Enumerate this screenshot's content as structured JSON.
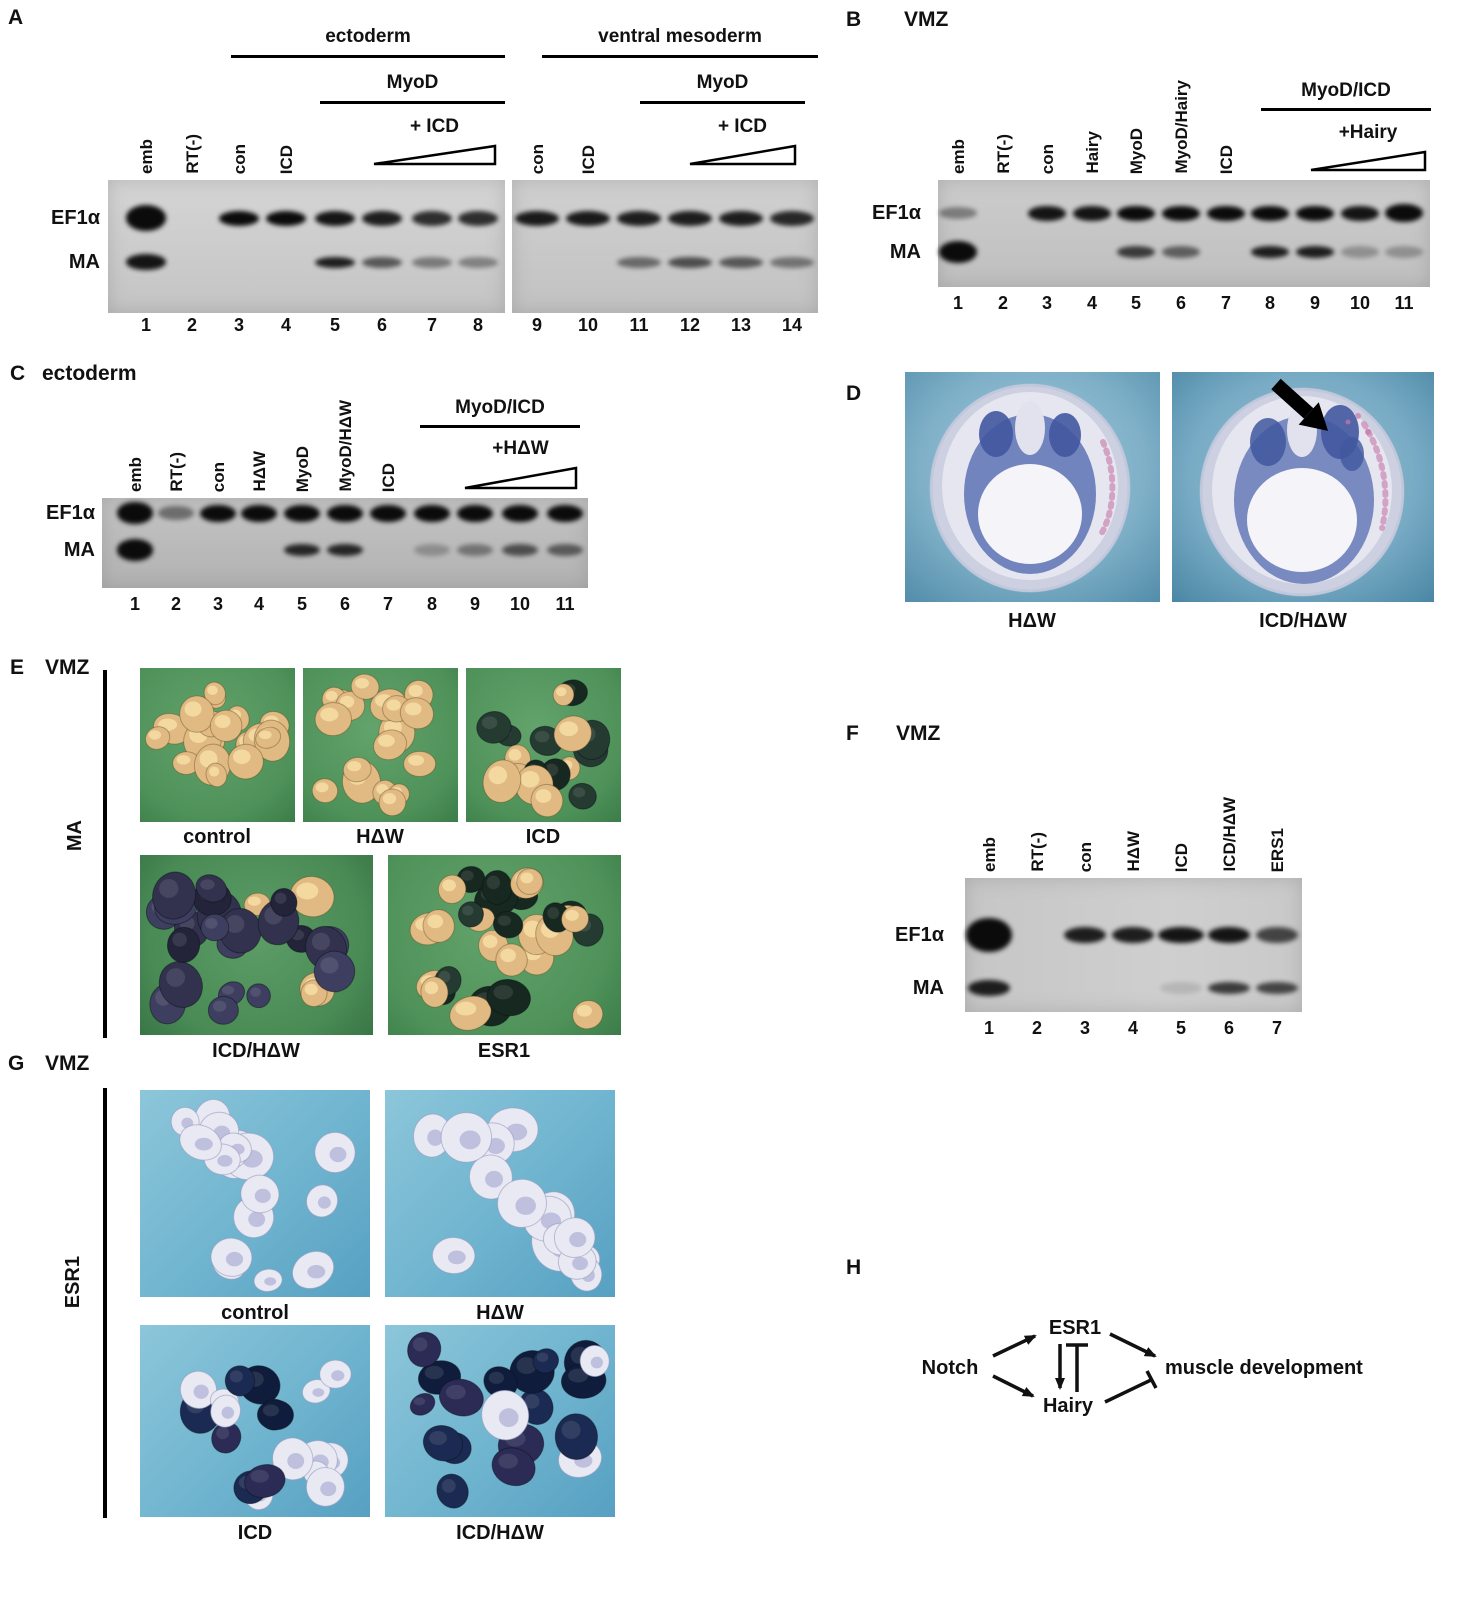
{
  "panels": {
    "A": {
      "letter": "A",
      "groups": {
        "ectoderm": {
          "label": "ectoderm",
          "sub": "MyoD",
          "ramp": "+ ICD"
        },
        "ventral": {
          "label": "ventral mesoderm",
          "sub": "MyoD",
          "ramp": "+ ICD"
        }
      },
      "rows": {
        "ef1a": "EF1α",
        "ma": "MA"
      },
      "lanes": [
        {
          "num": "1",
          "label": "emb",
          "ef1a": 1,
          "ef1a_hs": 1.7,
          "ma": 0.95,
          "ma_hs": 1.4
        },
        {
          "num": "2",
          "label": "RT(-)"
        },
        {
          "num": "3",
          "label": "con",
          "ef1a": 1
        },
        {
          "num": "4",
          "label": "ICD",
          "ef1a": 1
        },
        {
          "num": "5",
          "ef1a": 0.95,
          "ma": 0.9
        },
        {
          "num": "6",
          "ef1a": 0.9,
          "ma": 0.6
        },
        {
          "num": "7",
          "ef1a": 0.82,
          "ma": 0.42
        },
        {
          "num": "8",
          "ef1a": 0.82,
          "ma": 0.38
        },
        {
          "num": "9",
          "label": "con",
          "ef1a": 0.92
        },
        {
          "num": "10",
          "label": "ICD",
          "ef1a": 0.92
        },
        {
          "num": "11",
          "ef1a": 0.9,
          "ma": 0.5
        },
        {
          "num": "12",
          "ef1a": 0.9,
          "ma": 0.65
        },
        {
          "num": "13",
          "ef1a": 0.9,
          "ma": 0.6
        },
        {
          "num": "14",
          "ef1a": 0.85,
          "ma": 0.45
        }
      ]
    },
    "B": {
      "letter": "B",
      "tissue": "VMZ",
      "groups": {
        "myodicd": {
          "label": "MyoD/ICD",
          "ramp": "+Hairy"
        }
      },
      "rows": {
        "ef1a": "EF1α",
        "ma": "MA"
      },
      "lanes": [
        {
          "num": "1",
          "label": "emb",
          "ef1a": 0.4,
          "ef1a_hs": 0.8,
          "ma": 1,
          "ma_hs": 1.9
        },
        {
          "num": "2",
          "label": "RT(-)"
        },
        {
          "num": "3",
          "label": "con",
          "ef1a": 0.95
        },
        {
          "num": "4",
          "label": "Hairy",
          "ef1a": 0.95
        },
        {
          "num": "5",
          "label": "MyoD",
          "ef1a": 1,
          "ma": 0.75
        },
        {
          "num": "6",
          "label": "MyoD/Hairy",
          "ef1a": 1,
          "ma": 0.55
        },
        {
          "num": "7",
          "label": "ICD",
          "ef1a": 1
        },
        {
          "num": "8",
          "ef1a": 1,
          "ma": 0.9
        },
        {
          "num": "9",
          "ef1a": 1,
          "ma": 0.9
        },
        {
          "num": "10",
          "ef1a": 0.95,
          "ma": 0.28
        },
        {
          "num": "11",
          "ef1a": 1,
          "ef1a_hs": 1.25,
          "ma": 0.28
        }
      ]
    },
    "C": {
      "letter": "C",
      "tissue": "ectoderm",
      "groups": {
        "myodicd": {
          "label": "MyoD/ICD",
          "ramp": "+HΔW"
        }
      },
      "rows": {
        "ef1a": "EF1α",
        "ma": "MA"
      },
      "lanes": [
        {
          "num": "1",
          "label": "emb",
          "ef1a": 1,
          "ef1a_hs": 1.35,
          "ma": 1,
          "ma_hs": 1.8
        },
        {
          "num": "2",
          "label": "RT(-)",
          "ef1a": 0.45,
          "ef1a_hs": 0.8
        },
        {
          "num": "3",
          "label": "con",
          "ef1a": 1
        },
        {
          "num": "4",
          "label": "HΔW",
          "ef1a": 1
        },
        {
          "num": "5",
          "label": "MyoD",
          "ef1a": 1,
          "ma": 0.85
        },
        {
          "num": "6",
          "label": "MyoD/HΔW",
          "ef1a": 1,
          "ma": 0.85
        },
        {
          "num": "7",
          "label": "ICD",
          "ef1a": 1
        },
        {
          "num": "8",
          "ef1a": 1,
          "ma": 0.25
        },
        {
          "num": "9",
          "ef1a": 1,
          "ma": 0.4
        },
        {
          "num": "10",
          "ef1a": 1,
          "ma": 0.62
        },
        {
          "num": "11",
          "ef1a": 1,
          "ma": 0.55
        }
      ]
    },
    "D": {
      "letter": "D",
      "photos": [
        {
          "label": "HΔW"
        },
        {
          "label": "ICD/HΔW"
        }
      ]
    },
    "E": {
      "letter": "E",
      "tissue": "VMZ",
      "assay": "MA",
      "photos": [
        {
          "label": "control",
          "style": "tan",
          "count": 19,
          "dark": 0
        },
        {
          "label": "HΔW",
          "style": "tan",
          "count": 18,
          "dark": 0
        },
        {
          "label": "ICD",
          "style": "tan-dark",
          "count": 20,
          "dark": 0.55
        },
        {
          "label": "ICD/HΔW",
          "style": "purple-dark",
          "count": 26,
          "dark": 0.8
        },
        {
          "label": "ESR1",
          "style": "tan-dark",
          "count": 30,
          "dark": 0.5
        }
      ]
    },
    "F": {
      "letter": "F",
      "tissue": "VMZ",
      "rows": {
        "ef1a": "EF1α",
        "ma": "MA"
      },
      "lanes": [
        {
          "num": "1",
          "label": "emb",
          "ef1a": 1,
          "ef1a_hs": 2.1,
          "ef1a_ws": 1.1,
          "ma": 0.9,
          "ma_hs": 1.3
        },
        {
          "num": "2",
          "label": "RT(-)"
        },
        {
          "num": "3",
          "label": "con",
          "ef1a": 0.9
        },
        {
          "num": "4",
          "label": "HΔW",
          "ef1a": 0.9
        },
        {
          "num": "5",
          "label": "ICD",
          "ef1a": 0.95,
          "ef1a_ws": 1.1,
          "ma": 0.12
        },
        {
          "num": "6",
          "label": "ICD/HΔW",
          "ef1a": 0.95,
          "ma": 0.75
        },
        {
          "num": "7",
          "label": "ERS1",
          "ef1a": 0.7,
          "ma": 0.7
        }
      ]
    },
    "G": {
      "letter": "G",
      "tissue": "VMZ",
      "assay": "ESR1",
      "photos": [
        {
          "label": "control",
          "style": "pale",
          "count": 17,
          "dark": 0
        },
        {
          "label": "HΔW",
          "style": "pale",
          "count": 15,
          "dark": 0
        },
        {
          "label": "ICD",
          "style": "pale-navy",
          "count": 19,
          "dark": 0.55
        },
        {
          "label": "ICD/HΔW",
          "style": "pale-navy",
          "count": 19,
          "dark": 0.75
        }
      ]
    },
    "H": {
      "letter": "H",
      "nodes": {
        "notch": "Notch",
        "esr1": "ESR1",
        "hairy": "Hairy",
        "muscle": "muscle development"
      }
    }
  },
  "colors": {
    "band": "#0b0b0b",
    "gel_bg_light": "#cfcfcf",
    "gel_bg_dark": "#b9b9b9",
    "photo_green_bg": "#4e9159",
    "photo_blue_bg": "#6fb4cf",
    "explant_tan": "#e0ba82",
    "explant_dark_green": "#253a31",
    "explant_dark_purple": "#32324e",
    "explant_pale": "#e9e9f3",
    "explant_navy": "#1b2a52",
    "embryo_stain_blue": "#4a63ac",
    "embryo_pink": "#c776a8"
  }
}
